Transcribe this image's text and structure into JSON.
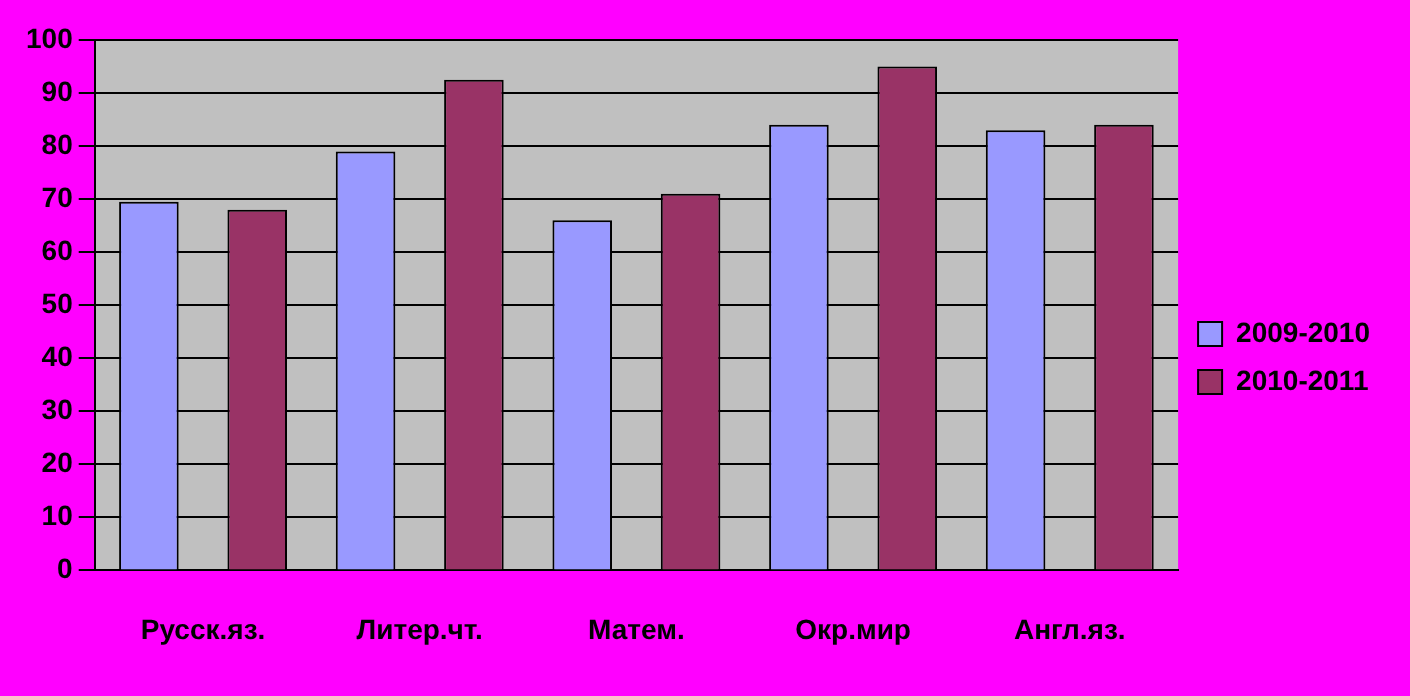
{
  "chart_data": {
    "type": "bar",
    "categories": [
      "Русск.яз.",
      "Литер.чт.",
      "Матем.",
      "Окр.мир",
      "Англ.яз."
    ],
    "series": [
      {
        "name": "2009-2010",
        "color": "#9999ff",
        "values": [
          69.5,
          79,
          66,
          84,
          83
        ]
      },
      {
        "name": "2010-2011",
        "color": "#993366",
        "values": [
          68,
          92.5,
          71,
          95,
          84
        ]
      }
    ],
    "ylim": [
      0,
      100
    ],
    "yticks": [
      0,
      10,
      20,
      30,
      40,
      50,
      60,
      70,
      80,
      90,
      100
    ],
    "grid": "y",
    "legend": "right"
  }
}
